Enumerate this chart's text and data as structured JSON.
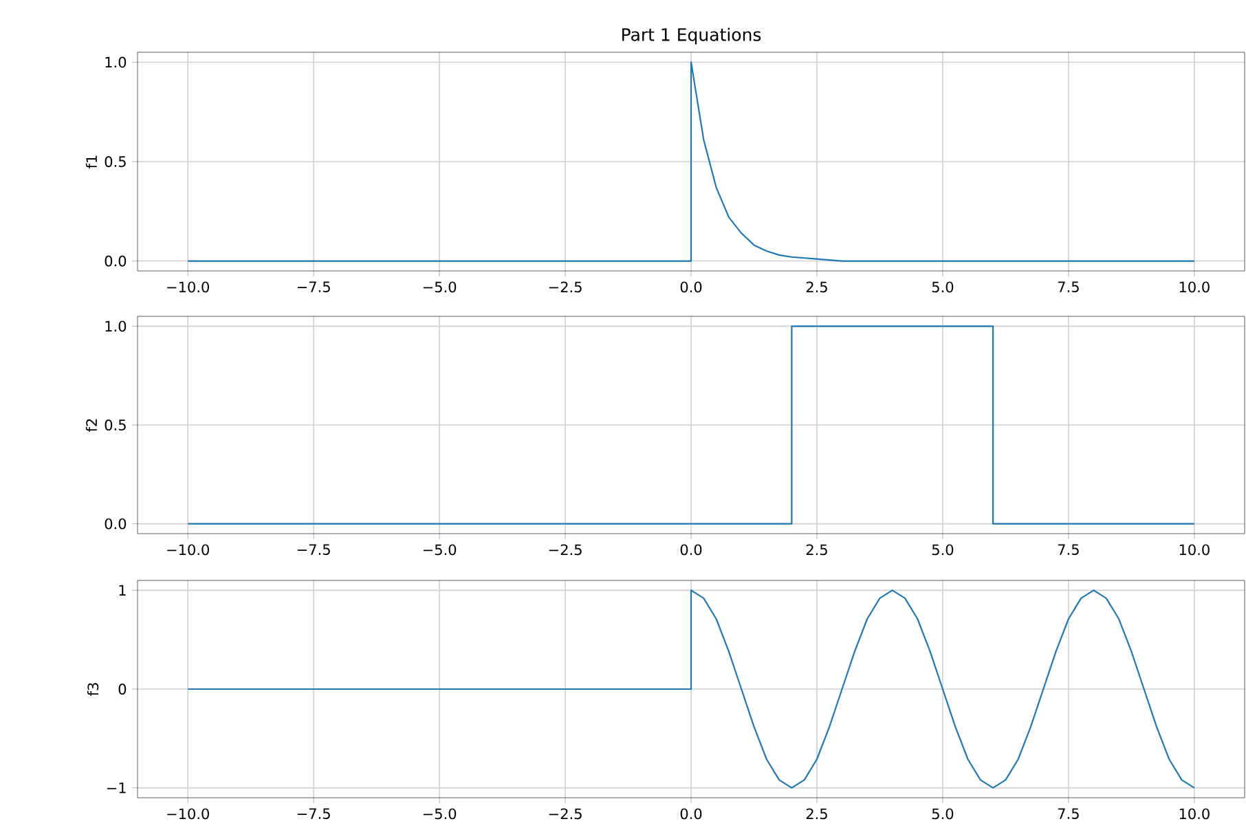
{
  "chart_data": [
    {
      "type": "line",
      "title": "Part 1 Equations",
      "ylabel": "f1",
      "grid": true,
      "xlim": [
        -11,
        11
      ],
      "ylim": [
        -0.05,
        1.05
      ],
      "xticks": [
        {
          "value": -10,
          "label": "−10.0"
        },
        {
          "value": -7.5,
          "label": "−7.5"
        },
        {
          "value": -5,
          "label": "−5.0"
        },
        {
          "value": -2.5,
          "label": "−2.5"
        },
        {
          "value": 0,
          "label": "0.0"
        },
        {
          "value": 2.5,
          "label": "2.5"
        },
        {
          "value": 5,
          "label": "5.0"
        },
        {
          "value": 7.5,
          "label": "7.5"
        },
        {
          "value": 10,
          "label": "10.0"
        }
      ],
      "yticks": [
        {
          "value": 0,
          "label": "0.0"
        },
        {
          "value": 0.5,
          "label": "0.5"
        },
        {
          "value": 1,
          "label": "1.0"
        }
      ],
      "x": [
        -10,
        0,
        0,
        0.25,
        0.5,
        0.75,
        1,
        1.25,
        1.5,
        1.75,
        2,
        2.5,
        3,
        3.5,
        4,
        10
      ],
      "series": [
        {
          "color": "#1f77b4",
          "values": [
            0,
            0,
            1,
            0.61,
            0.37,
            0.22,
            0.14,
            0.08,
            0.05,
            0.03,
            0.02,
            0.01,
            0,
            0,
            0,
            0
          ]
        }
      ]
    },
    {
      "type": "line",
      "ylabel": "f2",
      "grid": true,
      "xlim": [
        -11,
        11
      ],
      "ylim": [
        -0.05,
        1.05
      ],
      "xticks": [
        {
          "value": -10,
          "label": "−10.0"
        },
        {
          "value": -7.5,
          "label": "−7.5"
        },
        {
          "value": -5,
          "label": "−5.0"
        },
        {
          "value": -2.5,
          "label": "−2.5"
        },
        {
          "value": 0,
          "label": "0.0"
        },
        {
          "value": 2.5,
          "label": "2.5"
        },
        {
          "value": 5,
          "label": "5.0"
        },
        {
          "value": 7.5,
          "label": "7.5"
        },
        {
          "value": 10,
          "label": "10.0"
        }
      ],
      "yticks": [
        {
          "value": 0,
          "label": "0.0"
        },
        {
          "value": 0.5,
          "label": "0.5"
        },
        {
          "value": 1,
          "label": "1.0"
        }
      ],
      "x": [
        -10,
        2,
        2,
        6,
        6,
        10
      ],
      "series": [
        {
          "color": "#1f77b4",
          "values": [
            0,
            0,
            1,
            1,
            0,
            0
          ]
        }
      ]
    },
    {
      "type": "line",
      "ylabel": "f3",
      "grid": true,
      "xlim": [
        -11,
        11
      ],
      "ylim": [
        -1.1,
        1.1
      ],
      "xticks": [
        {
          "value": -10,
          "label": "−10.0"
        },
        {
          "value": -7.5,
          "label": "−7.5"
        },
        {
          "value": -5,
          "label": "−5.0"
        },
        {
          "value": -2.5,
          "label": "−2.5"
        },
        {
          "value": 0,
          "label": "0.0"
        },
        {
          "value": 2.5,
          "label": "2.5"
        },
        {
          "value": 5,
          "label": "5.0"
        },
        {
          "value": 7.5,
          "label": "7.5"
        },
        {
          "value": 10,
          "label": "10.0"
        }
      ],
      "yticks": [
        {
          "value": -1,
          "label": "−1"
        },
        0,
        1
      ],
      "x": [
        -10,
        0,
        0,
        0.25,
        0.5,
        0.75,
        1,
        1.25,
        1.5,
        1.75,
        2,
        2.25,
        2.5,
        2.75,
        3,
        3.25,
        3.5,
        3.75,
        4,
        4.25,
        4.5,
        4.75,
        5,
        5.25,
        5.5,
        5.75,
        6,
        6.25,
        6.5,
        6.75,
        7,
        7.25,
        7.5,
        7.75,
        8,
        8.25,
        8.5,
        8.75,
        9,
        9.25,
        9.5,
        9.75,
        10
      ],
      "series": [
        {
          "color": "#1f77b4",
          "values": [
            0,
            0,
            1,
            0.92,
            0.71,
            0.38,
            0,
            -0.38,
            -0.71,
            -0.92,
            -1,
            -0.92,
            -0.71,
            -0.38,
            0,
            0.38,
            0.71,
            0.92,
            1,
            0.92,
            0.71,
            0.38,
            0,
            -0.38,
            -0.71,
            -0.92,
            -1,
            -0.92,
            -0.71,
            -0.38,
            0,
            0.38,
            0.71,
            0.92,
            1,
            0.92,
            0.71,
            0.38,
            0,
            -0.38,
            -0.71,
            -0.92,
            -1
          ]
        }
      ]
    }
  ]
}
